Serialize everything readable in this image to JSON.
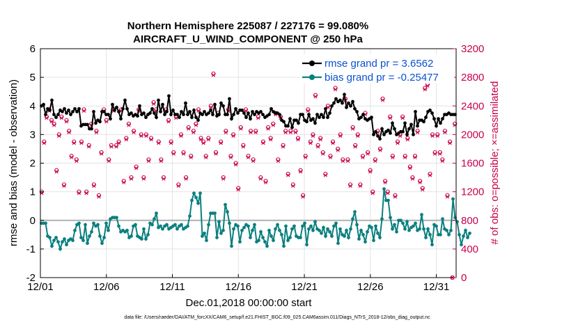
{
  "chart_data": {
    "type": "line",
    "title_line1": "Northern Hemisphere 225087 / 227176 = 99.080%",
    "title_line2": "AIRCRAFT_U_WIND_COMPONENT @ 250 hPa",
    "xlabel": "Dec.01,2018 00:00:00 start",
    "ylabel_left": "rmse and bias (model - observation)",
    "ylabel_right": "# of obs: o=possible; ×=assimilated",
    "xlim": [
      0,
      31.5
    ],
    "ylim_left": [
      -2,
      6
    ],
    "ylim_right": [
      0,
      3200
    ],
    "x_ticks": [
      {
        "value": 0,
        "label": "12/01"
      },
      {
        "value": 5,
        "label": "12/06"
      },
      {
        "value": 10,
        "label": "12/11"
      },
      {
        "value": 15,
        "label": "12/16"
      },
      {
        "value": 20,
        "label": "12/21"
      },
      {
        "value": 25,
        "label": "12/26"
      },
      {
        "value": 30,
        "label": "12/31"
      }
    ],
    "y_ticks_left": [
      {
        "value": -2,
        "label": "-2"
      },
      {
        "value": -1,
        "label": "-1"
      },
      {
        "value": 0,
        "label": "0"
      },
      {
        "value": 1,
        "label": "1"
      },
      {
        "value": 2,
        "label": "2"
      },
      {
        "value": 3,
        "label": "3"
      },
      {
        "value": 4,
        "label": "4"
      },
      {
        "value": 5,
        "label": "5"
      },
      {
        "value": 6,
        "label": "6"
      }
    ],
    "y_ticks_right": [
      {
        "value": 0,
        "label": "0"
      },
      {
        "value": 400,
        "label": "400"
      },
      {
        "value": 800,
        "label": "800"
      },
      {
        "value": 1200,
        "label": "1200"
      },
      {
        "value": 1600,
        "label": "1600"
      },
      {
        "value": 2000,
        "label": "2000"
      },
      {
        "value": 2400,
        "label": "2400"
      },
      {
        "value": 2800,
        "label": "2800"
      },
      {
        "value": 3200,
        "label": "3200"
      }
    ],
    "legend": {
      "placement": "top-right",
      "rmse_label": "rmse grand pr = 3.6562",
      "bias_label": "bias grand pr = -0.25477"
    },
    "series": [
      {
        "name": "rmse",
        "color": "#000000",
        "values": [
          4.0,
          4.05,
          3.7,
          3.9,
          3.85,
          4.2,
          3.7,
          3.6,
          3.7,
          3.85,
          3.8,
          3.9,
          3.75,
          3.85,
          3.7,
          3.8,
          3.9,
          3.8,
          3.9,
          3.3,
          3.35,
          3.35,
          3.35,
          3.2,
          3.2,
          3.8,
          3.4,
          3.5,
          3.45,
          3.8,
          3.8,
          3.7,
          3.7,
          3.55,
          4.05,
          3.85,
          3.95,
          3.8,
          3.55,
          3.9,
          4.2,
          3.9,
          3.7,
          3.75,
          3.65,
          3.7,
          3.65,
          4.0,
          3.7,
          3.75,
          3.6,
          3.7,
          3.75,
          3.9,
          3.75,
          3.6,
          4.2,
          3.8,
          4.05,
          3.7,
          3.8,
          4.35,
          3.7,
          3.85,
          3.7,
          3.7,
          3.6,
          3.8,
          3.7,
          4.1,
          3.7,
          3.8,
          3.6,
          3.85,
          3.6,
          3.5,
          3.75,
          3.7,
          3.8,
          3.7,
          3.75,
          3.85,
          3.7,
          4.05,
          3.65,
          3.7,
          4.1,
          4.0,
          3.7,
          3.7,
          4.25,
          3.55,
          3.7,
          3.9,
          3.75,
          3.85,
          3.85,
          3.75,
          3.6,
          3.75,
          3.55,
          3.8,
          3.7,
          3.8,
          3.75,
          3.8,
          3.7,
          3.6,
          3.65,
          3.7,
          3.9,
          3.8,
          3.75,
          3.75,
          3.7,
          3.5,
          3.45,
          3.3,
          3.3,
          3.55,
          3.25,
          3.5,
          3.5,
          3.4,
          3.7,
          3.7,
          3.5,
          3.45,
          3.7,
          3.5,
          3.55,
          3.4,
          3.7,
          3.6,
          3.7,
          3.6,
          3.9,
          3.6,
          3.75,
          4.0,
          4.1,
          4.25,
          4.15,
          4.2,
          4.1,
          4.4,
          3.95,
          4.1,
          4.0,
          4.15,
          3.9,
          3.8,
          3.55,
          3.6,
          3.7,
          3.55,
          3.5,
          3.55,
          3.6,
          3.0,
          3.1,
          2.95,
          2.85,
          3.2,
          3.0,
          3.1,
          3.15,
          3.05,
          3.4,
          3.2,
          3.0,
          3.05,
          3.1,
          3.1,
          3.4,
          3.0,
          3.2,
          3.35,
          3.0,
          3.8,
          3.3,
          3.5,
          3.5,
          3.45,
          3.6,
          3.8,
          3.85,
          3.75,
          3.55,
          3.3,
          3.55,
          3.4,
          3.55,
          3.7,
          3.7,
          3.75,
          3.7,
          3.7,
          3.7
        ]
      },
      {
        "name": "bias",
        "color": "#0b7f7f",
        "values": [
          -0.1,
          -0.1,
          -0.1,
          -0.55,
          -0.6,
          -0.9,
          -0.7,
          -0.6,
          -0.75,
          -1.0,
          -0.75,
          -0.65,
          -0.85,
          -0.7,
          -0.65,
          -0.7,
          -0.35,
          -0.15,
          -0.1,
          -0.6,
          -0.7,
          -0.15,
          -0.8,
          -0.55,
          -0.4,
          -0.1,
          -0.2,
          -0.15,
          -0.55,
          -0.8,
          -0.6,
          -0.1,
          -0.35,
          0.05,
          0.1,
          0.1,
          0.1,
          -0.2,
          -0.4,
          -0.35,
          -0.4,
          -0.35,
          -0.6,
          -0.55,
          -0.2,
          -0.15,
          -0.55,
          -0.6,
          -0.65,
          -0.3,
          -0.65,
          -0.5,
          -0.1,
          -0.15,
          0.05,
          0.25,
          -0.25,
          -0.2,
          -0.3,
          -0.2,
          -0.15,
          -0.3,
          -0.25,
          -0.2,
          -0.15,
          -0.3,
          -0.2,
          -0.15,
          -0.3,
          -0.25,
          -0.2,
          0.15,
          0.7,
          0.95,
          0.8,
          0.6,
          0.95,
          -0.55,
          -0.45,
          -0.7,
          -0.15,
          0.25,
          0.25,
          0.25,
          -0.6,
          -0.05,
          -0.45,
          -0.35,
          0.55,
          0.3,
          -0.1,
          -0.9,
          -0.3,
          -0.15,
          -0.2,
          -0.75,
          -0.35,
          -0.25,
          -0.15,
          -0.2,
          -0.6,
          -0.35,
          -0.15,
          -0.75,
          -0.7,
          -0.4,
          -0.6,
          -0.75,
          -0.9,
          -0.35,
          -0.55,
          -0.7,
          -0.3,
          -0.15,
          -0.35,
          -0.5,
          -0.9,
          -0.2,
          -0.7,
          -0.6,
          -0.3,
          -0.2,
          -0.55,
          -0.6,
          -0.6,
          -0.2,
          -0.1,
          -0.85,
          -0.3,
          -0.2,
          -0.35,
          -0.05,
          -0.3,
          -0.35,
          -0.45,
          -0.25,
          -0.55,
          -0.3,
          -0.4,
          -0.55,
          -0.2,
          -0.1,
          -0.8,
          -0.3,
          -0.5,
          -0.55,
          -0.35,
          -0.6,
          -0.3,
          0.05,
          0.3,
          -0.15,
          -0.65,
          -0.35,
          -0.5,
          -0.75,
          -0.4,
          -0.2,
          -0.25,
          -0.7,
          -0.2,
          -0.45,
          -0.6,
          0.05,
          1.1,
          0.7,
          0.7,
          0.1,
          -0.3,
          -0.15,
          -0.4,
          0.0,
          0.0,
          -0.1,
          -0.3,
          -0.05,
          -0.35,
          -0.25,
          -0.2,
          -0.1,
          -0.35,
          -0.3,
          0.2,
          -0.3,
          -0.6,
          -0.3,
          -0.5,
          -0.85,
          -0.15,
          -0.2,
          -0.5,
          -0.5,
          0.05,
          -0.3,
          -0.35,
          -0.5,
          -0.35,
          0.75,
          0.1,
          -0.05,
          -0.5,
          -0.85,
          -0.55,
          -0.35,
          -0.6,
          -0.45
        ]
      },
      {
        "name": "obs_possible",
        "color": "#c8004b",
        "marker": "o",
        "values": [
          1200,
          1900,
          2250,
          2350,
          2200,
          2150,
          1500,
          2000,
          2250,
          1300,
          2200,
          2050,
          1700,
          1900,
          1650,
          1200,
          1900,
          2350,
          1200,
          1850,
          2150,
          1300,
          2050,
          1150,
          1750,
          2350,
          2200,
          1650,
          1850,
          2350,
          1850,
          1900,
          2350,
          1350,
          1950,
          2150,
          1400,
          2050,
          1550,
          2350,
          2000,
          1400,
          2000,
          1650,
          1950,
          2450,
          2350,
          1900,
          1650,
          1400,
          2350,
          2200,
          1900,
          1750,
          2250,
          1300,
          2000,
          1750,
          1400,
          2100,
          1700,
          2050,
          2150,
          2350,
          1950,
          1900,
          1700,
          1950,
          2400,
          2850,
          1750,
          2300,
          1900,
          1400,
          2050,
          2350,
          1700,
          2000,
          1600,
          1250,
          2100,
          1850,
          2350,
          1700,
          2050,
          1650,
          2050,
          2250,
          1400,
          1900,
          1350,
          2100,
          1950,
          2150,
          2300,
          1650,
          2250,
          1850,
          2050,
          1450,
          2050,
          1300,
          2050,
          1950,
          1500,
          1150,
          1700,
          2350,
          1900,
          2000,
          2550,
          1850,
          1950,
          1750,
          1450,
          2400,
          1700,
          1900,
          2650,
          1800,
          2000,
          1650,
          2500,
          1650,
          1300,
          2100,
          1850,
          2000,
          1300,
          1700,
          2300,
          1750,
          1500,
          1200,
          1650,
          2050,
          1800,
          2500,
          1350,
          1200,
          2250,
          1700,
          1150,
          1900,
          2000,
          2250,
          1700,
          1950,
          1550,
          1400,
          1700,
          2050,
          1350,
          1250,
          2650,
          2700,
          1450,
          2000,
          1750,
          2000,
          1750,
          1650,
          2050,
          1150,
          1900,
          0,
          2150
        ]
      },
      {
        "name": "obs_assimilated",
        "color": "#c8004b",
        "marker": "x",
        "values": [
          1180,
          1880,
          2230,
          2330,
          2180,
          2130,
          1480,
          1980,
          2230,
          1280,
          2180,
          2030,
          1680,
          1880,
          1630,
          1180,
          1880,
          2330,
          1180,
          1830,
          2130,
          1280,
          2030,
          1130,
          1730,
          2330,
          2180,
          1630,
          1830,
          2330,
          1830,
          1880,
          2330,
          1330,
          1930,
          2130,
          1380,
          2030,
          1530,
          2330,
          1980,
          1380,
          1980,
          1630,
          1930,
          2430,
          2330,
          1880,
          1630,
          1380,
          2330,
          2180,
          1880,
          1730,
          2230,
          1280,
          1980,
          1730,
          1380,
          2080,
          1680,
          2030,
          2130,
          2330,
          1930,
          1880,
          1680,
          1930,
          2380,
          2830,
          1730,
          2280,
          1880,
          1380,
          2030,
          2330,
          1680,
          1980,
          1580,
          1230,
          2080,
          1830,
          2330,
          1680,
          2030,
          1630,
          2030,
          2230,
          1380,
          1880,
          1330,
          2080,
          1930,
          2130,
          2280,
          1630,
          2230,
          1830,
          2030,
          1430,
          2030,
          1280,
          2030,
          1930,
          1480,
          1130,
          1680,
          2330,
          1880,
          1980,
          2530,
          1830,
          1930,
          1730,
          1430,
          2380,
          1680,
          1880,
          2630,
          1780,
          1980,
          1630,
          2480,
          1630,
          1280,
          2080,
          1830,
          1980,
          1280,
          1680,
          2280,
          1730,
          1480,
          1180,
          1630,
          2030,
          1780,
          2480,
          1330,
          1180,
          2230,
          1680,
          1130,
          1880,
          1980,
          2230,
          1680,
          1930,
          1530,
          1380,
          1680,
          2030,
          1330,
          1230,
          2630,
          2680,
          1430,
          1980,
          1730,
          1980,
          1730,
          1630,
          2030,
          1130,
          1880,
          0,
          2130
        ]
      }
    ],
    "zero_line": 0,
    "footnote": "data file: /Users/raeder/DAI/ATM_forcXX/CAM6_setup/f.e21.FHIST_BGC.f09_025.CAM6assim.011/Diags_NTrS_2018-12/obs_diag_output.nc"
  }
}
